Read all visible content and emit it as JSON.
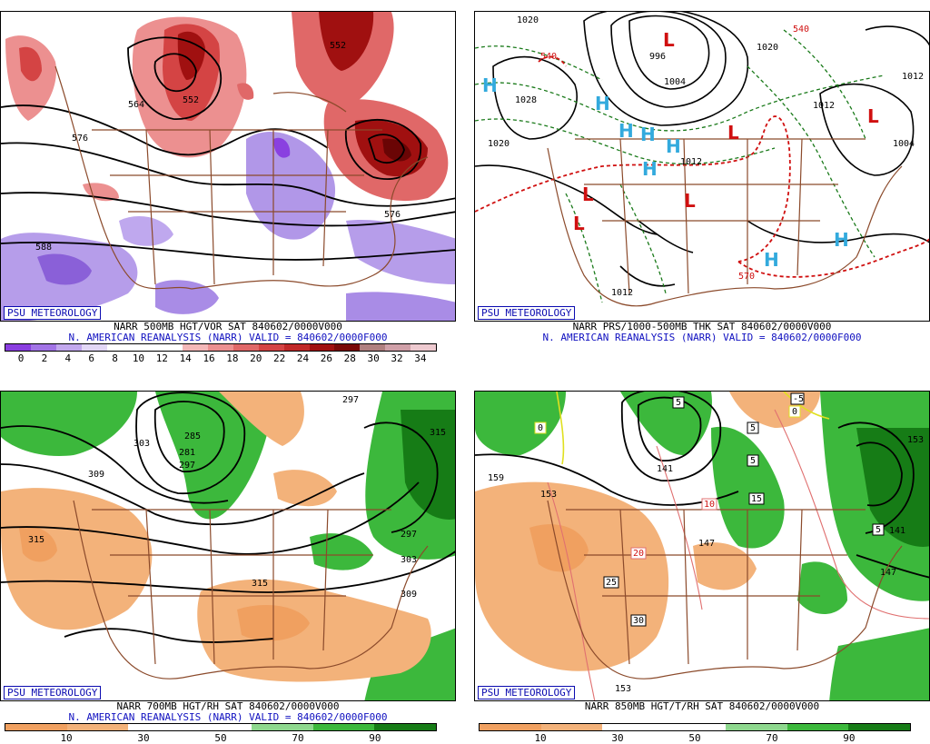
{
  "brand": "PSU METEOROLOGY",
  "panels": [
    {
      "id": "p1",
      "caption1": "NARR 500MB HGT/VOR SAT 840602/0000V000",
      "caption2": "N. AMERICAN REANALYSIS (NARR) VALID = 840602/0000F000",
      "colorbar": {
        "colors": [
          "#8a3ee0",
          "#a274e6",
          "#c2a8ee",
          "#e2d7f6",
          "#ffffff",
          "#ffffff",
          "#ffffff",
          "#f4b8b8",
          "#ec9090",
          "#e06868",
          "#d44444",
          "#c02828",
          "#a01010",
          "#7a0808",
          "#b08080",
          "#d0a0a8",
          "#eecad0"
        ],
        "ticks": [
          "0",
          "2",
          "4",
          "6",
          "8",
          "10",
          "12",
          "14",
          "16",
          "18",
          "20",
          "22",
          "24",
          "26",
          "28",
          "30",
          "32",
          "34"
        ]
      },
      "contour_labels": [
        "552",
        "576",
        "588",
        "564",
        "576",
        "552"
      ]
    },
    {
      "id": "p2",
      "caption1": "NARR PRS/1000-500MB THK SAT 840602/0000V000",
      "caption2": "N. AMERICAN REANALYSIS (NARR) VALID = 840602/0000F000",
      "contour_labels": [
        "1020",
        "540",
        "996",
        "1004",
        "1028",
        "1020",
        "1012",
        "1020",
        "1012",
        "1004",
        "1012",
        "570",
        "1012",
        "540"
      ]
    },
    {
      "id": "p3",
      "caption1": "NARR 700MB HGT/RH SAT 840602/0000V000",
      "caption2": "N. AMERICAN REANALYSIS (NARR) VALID = 840602/0000F000",
      "colorbar": {
        "colors": [
          "#f0a060",
          "#f3b27a",
          "#ffffff",
          "#ffffff",
          "#8ed88e",
          "#3cb83c",
          "#167c16"
        ],
        "ticks": [
          "10",
          "30",
          "50",
          "70",
          "90"
        ]
      },
      "contour_labels": [
        "297",
        "285",
        "281",
        "297",
        "303",
        "309",
        "315",
        "297",
        "303",
        "315",
        "309",
        "315"
      ]
    },
    {
      "id": "p4",
      "caption1": "NARR 850MB HGT/T/RH SAT 840602/0000V000",
      "contour_labels": [
        "159",
        "153",
        "141",
        "153",
        "141",
        "147",
        "147",
        "153",
        "-5",
        "0",
        "5",
        "5",
        "15",
        "10",
        "20",
        "25",
        "30",
        "5",
        "0",
        "5"
      ]
    }
  ]
}
